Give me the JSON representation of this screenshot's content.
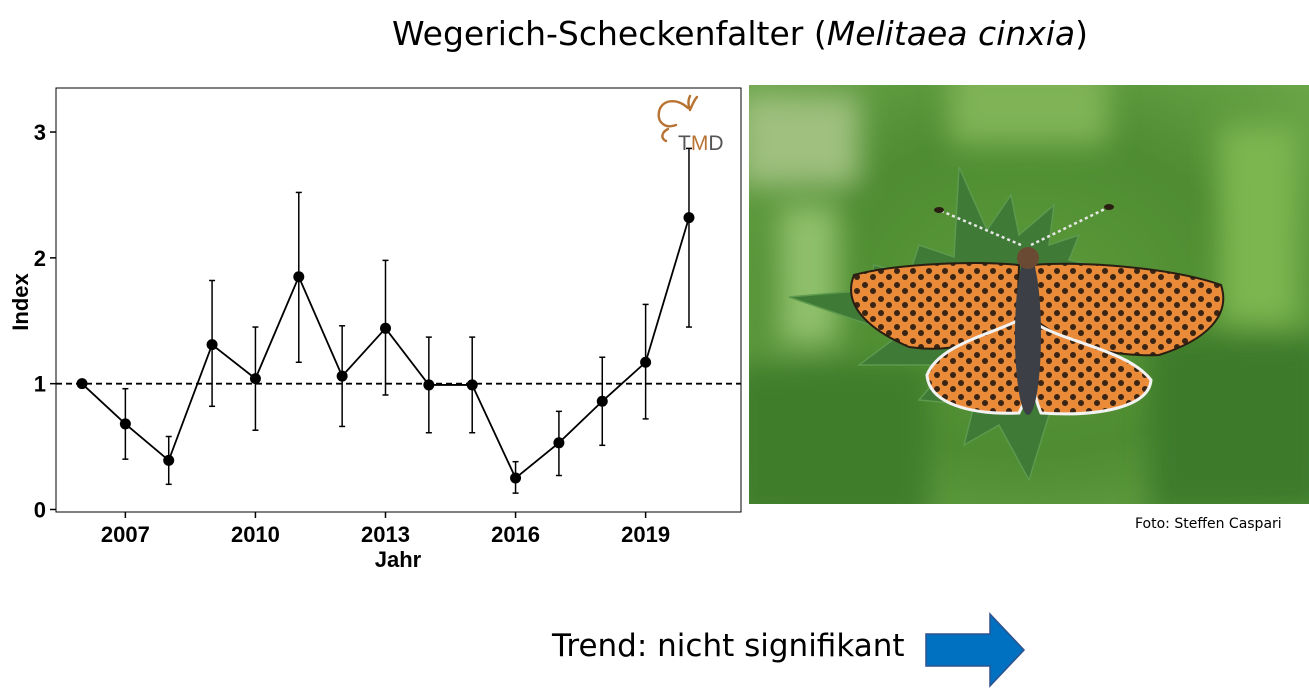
{
  "header": {
    "title_prefix": "Wegerich-Scheckenfalter (",
    "species": "Melitaea cinxia",
    "title_suffix": ")"
  },
  "logo": {
    "text_t": "T",
    "text_m": "M",
    "text_d": "D",
    "color": "#b87333"
  },
  "chart_data": {
    "type": "line",
    "x": [
      2006,
      2007,
      2008,
      2009,
      2010,
      2011,
      2012,
      2013,
      2014,
      2015,
      2016,
      2017,
      2018,
      2019,
      2020
    ],
    "series": [
      {
        "values": [
          1.0,
          0.68,
          0.39,
          1.31,
          1.04,
          1.85,
          1.06,
          1.44,
          0.99,
          0.99,
          0.25,
          0.53,
          0.86,
          1.17,
          2.32
        ],
        "lower": [
          1.0,
          0.4,
          0.2,
          0.82,
          0.63,
          1.17,
          0.66,
          0.91,
          0.61,
          0.61,
          0.13,
          0.27,
          0.51,
          0.72,
          1.45
        ],
        "upper": [
          1.0,
          0.96,
          0.58,
          1.82,
          1.45,
          2.52,
          1.46,
          1.98,
          1.37,
          1.37,
          0.38,
          0.78,
          1.21,
          1.63,
          2.87
        ]
      }
    ],
    "xticks": [
      2007,
      2010,
      2013,
      2016,
      2019
    ],
    "yticks": [
      0,
      1,
      2,
      3
    ],
    "xlabel": "Jahr",
    "ylabel": "Index",
    "xlim": [
      2005.4,
      2021.2
    ],
    "ylim": [
      -0.02,
      3.35
    ],
    "reference_line": 1,
    "grid": false
  },
  "photo": {
    "credit": "Foto: Steffen Caspari"
  },
  "trend": {
    "label": "Trend: nicht signifikant",
    "arrow_color": "#0070c0",
    "arrow_icon": "arrow-right-icon"
  }
}
